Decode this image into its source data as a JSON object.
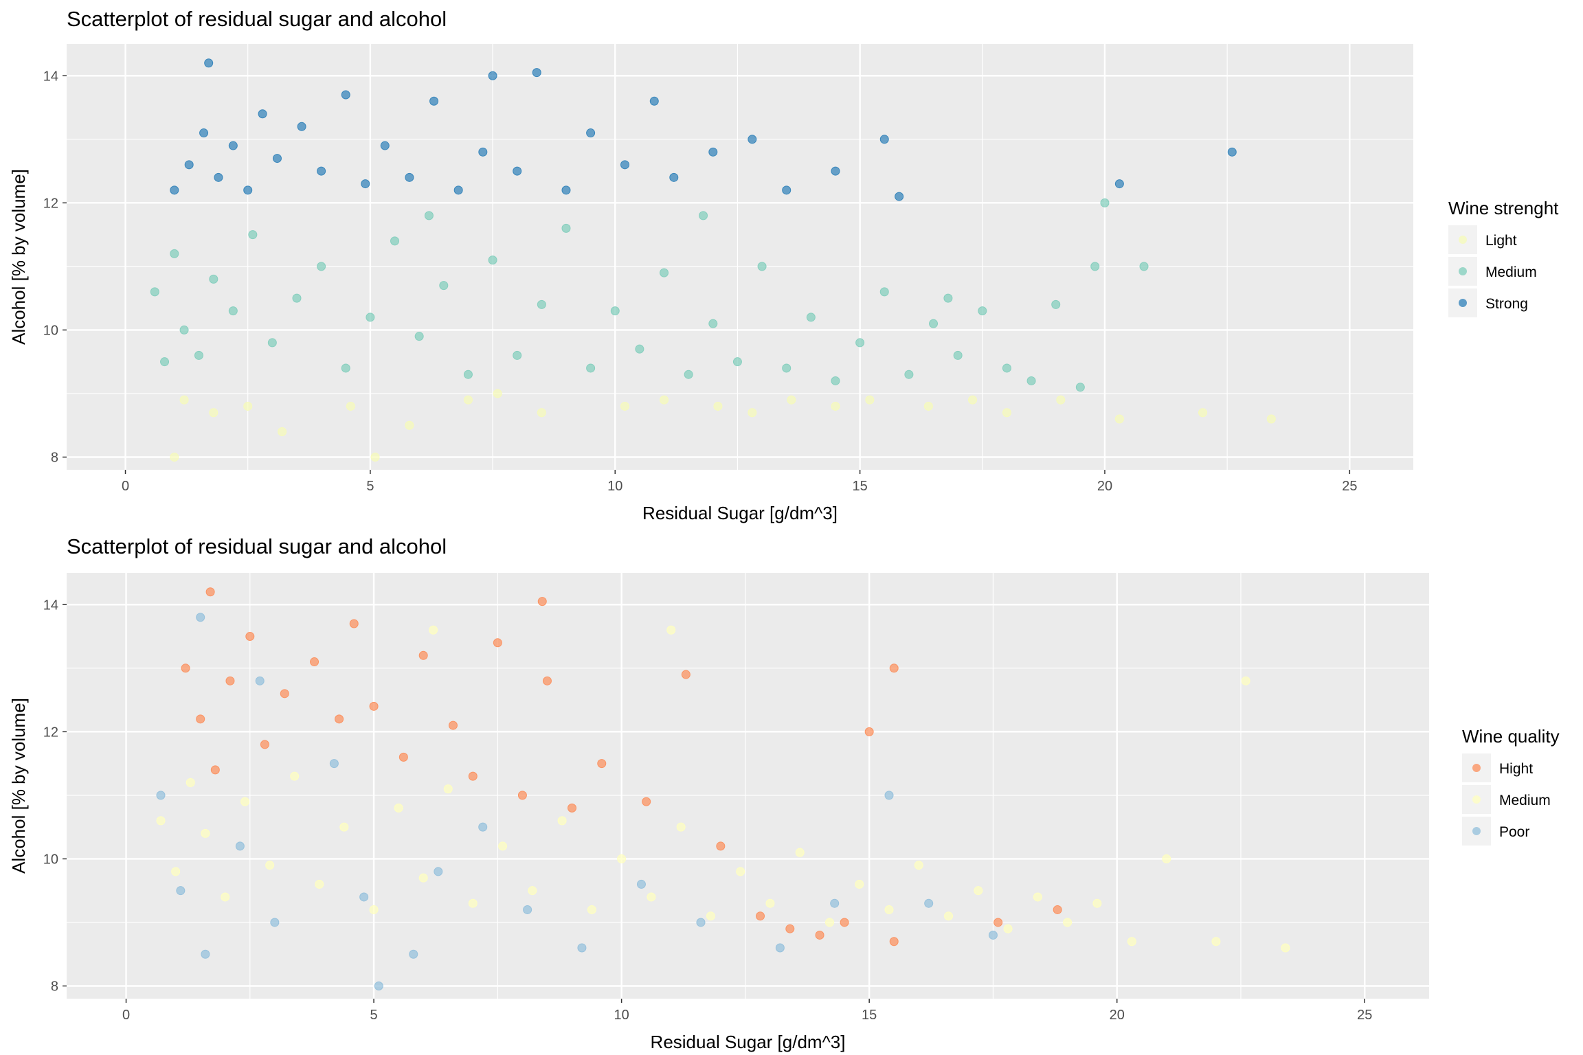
{
  "chart_data": [
    {
      "type": "scatter",
      "title": "Scatterplot of residual sugar and alcohol",
      "xlabel": "Residual Sugar [g/dm^3]",
      "ylabel": "Alcohol [% by volume]",
      "xlim": [
        -1.2,
        26.3
      ],
      "ylim": [
        7.8,
        14.5
      ],
      "x_ticks": [
        0,
        5,
        10,
        15,
        20,
        25
      ],
      "y_ticks": [
        8,
        10,
        12,
        14
      ],
      "grid": true,
      "legend_title": "Wine strenght",
      "legend_position": "right",
      "series": [
        {
          "name": "Light",
          "color": "#f6fbb8",
          "points": [
            [
              1.2,
              8.9
            ],
            [
              1.8,
              8.7
            ],
            [
              2.5,
              8.8
            ],
            [
              3.2,
              8.4
            ],
            [
              4.6,
              8.8
            ],
            [
              5.8,
              8.5
            ],
            [
              7.0,
              8.9
            ],
            [
              7.6,
              9.0
            ],
            [
              8.5,
              8.7
            ],
            [
              10.2,
              8.8
            ],
            [
              11.0,
              8.9
            ],
            [
              12.1,
              8.8
            ],
            [
              12.8,
              8.7
            ],
            [
              13.6,
              8.9
            ],
            [
              14.5,
              8.8
            ],
            [
              15.2,
              8.9
            ],
            [
              16.4,
              8.8
            ],
            [
              17.3,
              8.9
            ],
            [
              18.0,
              8.7
            ],
            [
              19.1,
              8.9
            ],
            [
              20.3,
              8.6
            ],
            [
              22.0,
              8.7
            ],
            [
              23.4,
              8.6
            ],
            [
              1.0,
              8.0
            ],
            [
              5.1,
              8.0
            ]
          ]
        },
        {
          "name": "Medium",
          "color": "#7fcdbb",
          "points": [
            [
              0.6,
              10.6
            ],
            [
              0.8,
              9.5
            ],
            [
              1.0,
              11.2
            ],
            [
              1.2,
              10.0
            ],
            [
              1.5,
              9.6
            ],
            [
              1.8,
              10.8
            ],
            [
              2.2,
              10.3
            ],
            [
              2.6,
              11.5
            ],
            [
              3.0,
              9.8
            ],
            [
              3.5,
              10.5
            ],
            [
              4.0,
              11.0
            ],
            [
              4.5,
              9.4
            ],
            [
              5.0,
              10.2
            ],
            [
              5.5,
              11.4
            ],
            [
              6.0,
              9.9
            ],
            [
              6.5,
              10.7
            ],
            [
              7.0,
              9.3
            ],
            [
              7.5,
              11.1
            ],
            [
              8.0,
              9.6
            ],
            [
              8.5,
              10.4
            ],
            [
              9.0,
              11.6
            ],
            [
              9.5,
              9.4
            ],
            [
              10.0,
              10.3
            ],
            [
              10.5,
              9.7
            ],
            [
              11.0,
              10.9
            ],
            [
              11.5,
              9.3
            ],
            [
              12.0,
              10.1
            ],
            [
              12.5,
              9.5
            ],
            [
              13.0,
              11.0
            ],
            [
              13.5,
              9.4
            ],
            [
              14.0,
              10.2
            ],
            [
              14.5,
              9.2
            ],
            [
              15.0,
              9.8
            ],
            [
              15.5,
              10.6
            ],
            [
              16.0,
              9.3
            ],
            [
              16.5,
              10.1
            ],
            [
              17.0,
              9.6
            ],
            [
              17.5,
              10.3
            ],
            [
              18.0,
              9.4
            ],
            [
              18.5,
              9.2
            ],
            [
              19.0,
              10.4
            ],
            [
              19.5,
              9.1
            ],
            [
              19.8,
              11.0
            ],
            [
              20.0,
              12.0
            ],
            [
              20.8,
              11.0
            ],
            [
              16.8,
              10.5
            ],
            [
              11.8,
              11.8
            ],
            [
              6.2,
              11.8
            ]
          ]
        },
        {
          "name": "Strong",
          "color": "#2c7fb8",
          "points": [
            [
              1.0,
              12.2
            ],
            [
              1.3,
              12.6
            ],
            [
              1.6,
              13.1
            ],
            [
              1.9,
              12.4
            ],
            [
              2.2,
              12.9
            ],
            [
              2.5,
              12.2
            ],
            [
              2.8,
              13.4
            ],
            [
              3.1,
              12.7
            ],
            [
              3.6,
              13.2
            ],
            [
              4.0,
              12.5
            ],
            [
              4.5,
              13.7
            ],
            [
              4.9,
              12.3
            ],
            [
              5.3,
              12.9
            ],
            [
              5.8,
              12.4
            ],
            [
              6.3,
              13.6
            ],
            [
              6.8,
              12.2
            ],
            [
              7.3,
              12.8
            ],
            [
              7.5,
              14.0
            ],
            [
              8.0,
              12.5
            ],
            [
              8.4,
              14.05
            ],
            [
              9.0,
              12.2
            ],
            [
              9.5,
              13.1
            ],
            [
              10.2,
              12.6
            ],
            [
              10.8,
              13.6
            ],
            [
              11.2,
              12.4
            ],
            [
              12.0,
              12.8
            ],
            [
              12.8,
              13.0
            ],
            [
              13.5,
              12.2
            ],
            [
              14.5,
              12.5
            ],
            [
              15.5,
              13.0
            ],
            [
              15.8,
              12.1
            ],
            [
              20.3,
              12.3
            ],
            [
              22.6,
              12.8
            ],
            [
              1.7,
              14.2
            ]
          ]
        }
      ]
    },
    {
      "type": "scatter",
      "title": "Scatterplot of residual sugar and alcohol",
      "xlabel": "Residual Sugar [g/dm^3]",
      "ylabel": "Alcohol [% by volume]",
      "xlim": [
        -1.2,
        26.3
      ],
      "ylim": [
        7.8,
        14.5
      ],
      "x_ticks": [
        0,
        5,
        10,
        15,
        20,
        25
      ],
      "y_ticks": [
        8,
        10,
        12,
        14
      ],
      "grid": true,
      "legend_title": "Wine quality",
      "legend_position": "right",
      "series": [
        {
          "name": "Hight",
          "color": "#fc8d59",
          "points": [
            [
              1.2,
              13.0
            ],
            [
              1.5,
              12.2
            ],
            [
              1.8,
              11.4
            ],
            [
              2.1,
              12.8
            ],
            [
              2.5,
              13.5
            ],
            [
              2.8,
              11.8
            ],
            [
              3.2,
              12.6
            ],
            [
              3.8,
              13.1
            ],
            [
              4.3,
              12.2
            ],
            [
              4.6,
              13.7
            ],
            [
              5.0,
              12.4
            ],
            [
              5.6,
              11.6
            ],
            [
              6.0,
              13.2
            ],
            [
              6.6,
              12.1
            ],
            [
              7.0,
              11.3
            ],
            [
              7.5,
              13.4
            ],
            [
              8.0,
              11.0
            ],
            [
              8.5,
              12.8
            ],
            [
              9.0,
              10.8
            ],
            [
              9.6,
              11.5
            ],
            [
              10.5,
              10.9
            ],
            [
              11.3,
              12.9
            ],
            [
              12.0,
              10.2
            ],
            [
              12.8,
              9.1
            ],
            [
              13.4,
              8.9
            ],
            [
              14.0,
              8.8
            ],
            [
              14.5,
              9.0
            ],
            [
              15.0,
              12.0
            ],
            [
              15.5,
              13.0
            ],
            [
              15.5,
              8.7
            ],
            [
              17.6,
              9.0
            ],
            [
              18.8,
              9.2
            ],
            [
              8.4,
              14.05
            ],
            [
              1.7,
              14.2
            ]
          ]
        },
        {
          "name": "Medium",
          "color": "#ffffbf",
          "points": [
            [
              0.7,
              10.6
            ],
            [
              1.0,
              9.8
            ],
            [
              1.3,
              11.2
            ],
            [
              1.6,
              10.4
            ],
            [
              2.0,
              9.4
            ],
            [
              2.4,
              10.9
            ],
            [
              2.9,
              9.9
            ],
            [
              3.4,
              11.3
            ],
            [
              3.9,
              9.6
            ],
            [
              4.4,
              10.5
            ],
            [
              5.0,
              9.2
            ],
            [
              5.5,
              10.8
            ],
            [
              6.0,
              9.7
            ],
            [
              6.5,
              11.1
            ],
            [
              7.0,
              9.3
            ],
            [
              7.6,
              10.2
            ],
            [
              8.2,
              9.5
            ],
            [
              8.8,
              10.6
            ],
            [
              9.4,
              9.2
            ],
            [
              10.0,
              10.0
            ],
            [
              10.6,
              9.4
            ],
            [
              11.2,
              10.5
            ],
            [
              11.8,
              9.1
            ],
            [
              12.4,
              9.8
            ],
            [
              13.0,
              9.3
            ],
            [
              13.6,
              10.1
            ],
            [
              14.2,
              9.0
            ],
            [
              14.8,
              9.6
            ],
            [
              15.4,
              9.2
            ],
            [
              16.0,
              9.9
            ],
            [
              16.6,
              9.1
            ],
            [
              17.2,
              9.5
            ],
            [
              17.8,
              8.9
            ],
            [
              18.4,
              9.4
            ],
            [
              19.0,
              9.0
            ],
            [
              19.6,
              9.3
            ],
            [
              20.3,
              8.7
            ],
            [
              21.0,
              10.0
            ],
            [
              22.0,
              8.7
            ],
            [
              22.6,
              12.8
            ],
            [
              23.4,
              8.6
            ],
            [
              11.0,
              13.6
            ],
            [
              6.2,
              13.6
            ]
          ]
        },
        {
          "name": "Poor",
          "color": "#91bfdb",
          "points": [
            [
              0.7,
              11.0
            ],
            [
              1.1,
              9.5
            ],
            [
              1.6,
              8.5
            ],
            [
              2.3,
              10.2
            ],
            [
              3.0,
              9.0
            ],
            [
              4.2,
              11.5
            ],
            [
              4.8,
              9.4
            ],
            [
              5.1,
              8.0
            ],
            [
              5.8,
              8.5
            ],
            [
              6.3,
              9.8
            ],
            [
              7.2,
              10.5
            ],
            [
              8.1,
              9.2
            ],
            [
              9.2,
              8.6
            ],
            [
              10.4,
              9.6
            ],
            [
              11.6,
              9.0
            ],
            [
              13.2,
              8.6
            ],
            [
              14.3,
              9.3
            ],
            [
              15.4,
              11.0
            ],
            [
              16.2,
              9.3
            ],
            [
              17.5,
              8.8
            ],
            [
              1.5,
              13.8
            ],
            [
              2.7,
              12.8
            ]
          ]
        }
      ]
    }
  ]
}
